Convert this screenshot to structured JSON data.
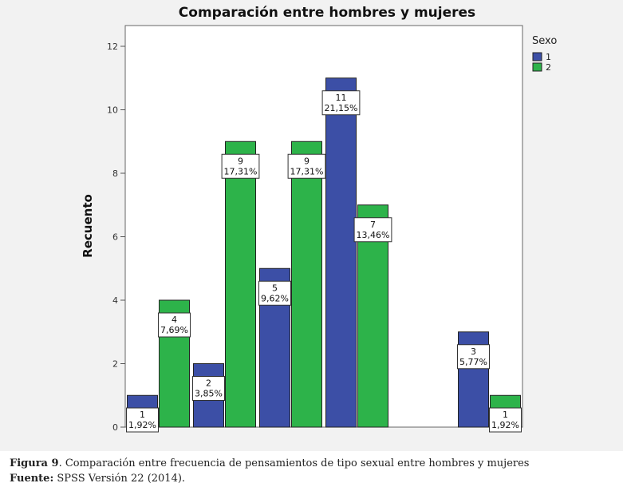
{
  "chart_data": {
    "type": "bar",
    "title": "Comparación  entre hombres y mujeres",
    "ylabel": "Recuento",
    "xlabel": "",
    "ylim": [
      0,
      12
    ],
    "yticks": [
      0,
      2,
      4,
      6,
      8,
      10,
      12
    ],
    "grid": false,
    "legend_title": "Sexo",
    "legend_position": "top-right",
    "categories": [
      "",
      "",
      "",
      "",
      "",
      ""
    ],
    "series": [
      {
        "name": "1",
        "color": "#3c4fa6",
        "values": [
          1,
          2,
          5,
          11,
          0,
          3
        ],
        "labels": [
          "1|1,92%",
          "2|3,85%",
          "5|9,62%",
          "11|21,15%",
          "",
          "3|5,77%"
        ]
      },
      {
        "name": "2",
        "color": "#2db34a",
        "values": [
          4,
          9,
          9,
          7,
          0,
          1
        ],
        "labels": [
          "4|7,69%",
          "9|17,31%",
          "9|17,31%",
          "7|13,46%",
          "",
          "1|1,92%"
        ]
      }
    ]
  },
  "caption": {
    "figure_label": "Figura 9",
    "figure_text": ". Comparación entre frecuencia de pensamientos de tipo sexual entre hombres y mujeres",
    "source_label": "Fuente:",
    "source_text": " SPSS Versión 22 (2014)."
  }
}
